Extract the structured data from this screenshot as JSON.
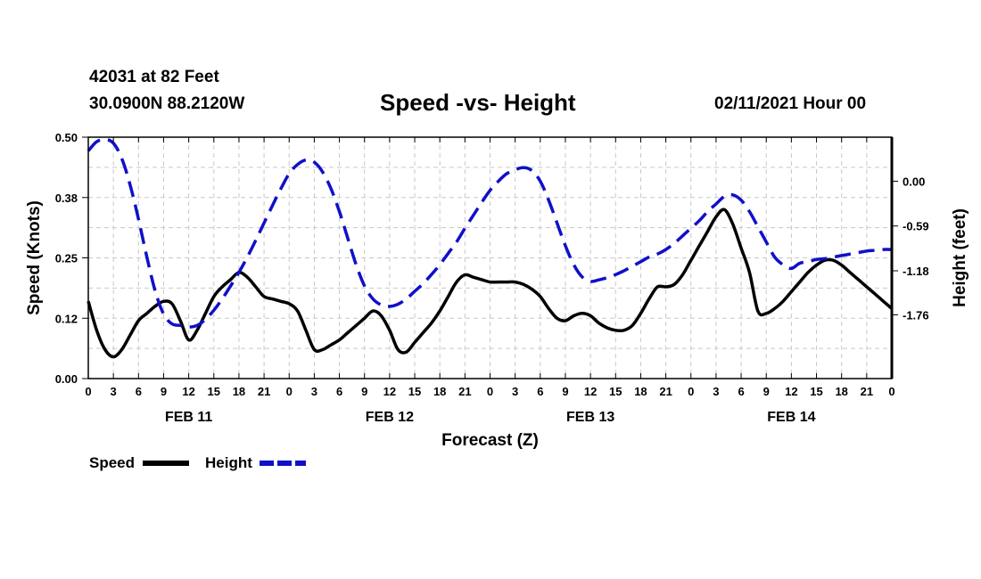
{
  "header": {
    "station": "42031 at 82 Feet",
    "coords": "30.0900N 88.2120W",
    "title": "Speed -vs- Height",
    "date": "02/11/2021 Hour 00"
  },
  "chart_data": {
    "type": "line",
    "title": "Speed -vs- Height",
    "xlabel": "Forecast (Z)",
    "ylabel_left": "Speed (Knots)",
    "ylabel_right": "Height (feet)",
    "x_range_hours": [
      0,
      96
    ],
    "x_tick_step_hours": 3,
    "x_tick_labels": [
      "0",
      "3",
      "6",
      "9",
      "12",
      "15",
      "18",
      "21",
      "0",
      "3",
      "6",
      "9",
      "12",
      "15",
      "18",
      "21",
      "0",
      "3",
      "6",
      "9",
      "12",
      "15",
      "18",
      "21",
      "0",
      "3",
      "6",
      "9",
      "12",
      "15",
      "18",
      "21",
      "0"
    ],
    "day_labels": [
      {
        "label": "FEB 11",
        "center_hour": 12
      },
      {
        "label": "FEB 12",
        "center_hour": 36
      },
      {
        "label": "FEB 13",
        "center_hour": 60
      },
      {
        "label": "FEB 14",
        "center_hour": 84
      }
    ],
    "left_axis": {
      "min": 0.0,
      "max": 0.5,
      "tick_values": [
        0.0,
        0.125,
        0.25,
        0.375,
        0.5
      ],
      "tick_labels": [
        "0.00",
        "0.12",
        "0.25",
        "0.38",
        "0.50"
      ]
    },
    "right_axis": {
      "min": -2.6,
      "max": 0.58,
      "tick_values": [
        0.0,
        -0.59,
        -1.18,
        -1.76
      ],
      "tick_labels": [
        "0.00",
        "-0.59",
        "-1.18",
        "-1.76"
      ]
    },
    "grid": true,
    "legend": [
      {
        "name": "Speed",
        "color": "#000000",
        "dash": "solid"
      },
      {
        "name": "Height",
        "color": "#1010c8",
        "dash": "dashed"
      }
    ],
    "series": [
      {
        "name": "Speed",
        "axis": "left",
        "color": "#000000",
        "x": [
          0,
          1,
          2,
          3,
          4,
          5,
          6,
          7,
          8,
          9,
          10,
          11,
          12,
          13,
          14,
          15,
          16,
          17,
          18,
          19,
          20,
          21,
          22,
          23,
          24,
          25,
          26,
          27,
          28,
          29,
          30,
          31,
          32,
          33,
          34,
          35,
          36,
          37,
          38,
          39,
          40,
          41,
          42,
          43,
          44,
          45,
          46,
          47,
          48,
          49,
          50,
          51,
          52,
          53,
          54,
          55,
          56,
          57,
          58,
          59,
          60,
          61,
          62,
          63,
          64,
          65,
          66,
          67,
          68,
          69,
          70,
          71,
          72,
          73,
          74,
          75,
          76,
          77,
          78,
          79,
          80,
          81,
          82,
          83,
          84,
          85,
          86,
          87,
          88,
          89,
          90,
          91,
          92,
          93,
          94,
          95,
          96
        ],
        "y": [
          0.16,
          0.1,
          0.06,
          0.045,
          0.06,
          0.09,
          0.12,
          0.135,
          0.15,
          0.16,
          0.155,
          0.12,
          0.08,
          0.1,
          0.135,
          0.17,
          0.19,
          0.205,
          0.22,
          0.21,
          0.19,
          0.17,
          0.165,
          0.16,
          0.155,
          0.14,
          0.1,
          0.06,
          0.06,
          0.07,
          0.08,
          0.095,
          0.11,
          0.125,
          0.14,
          0.13,
          0.1,
          0.06,
          0.055,
          0.075,
          0.095,
          0.115,
          0.14,
          0.17,
          0.2,
          0.215,
          0.21,
          0.205,
          0.2,
          0.2,
          0.2,
          0.2,
          0.195,
          0.185,
          0.17,
          0.145,
          0.125,
          0.12,
          0.13,
          0.135,
          0.13,
          0.115,
          0.105,
          0.1,
          0.1,
          0.11,
          0.135,
          0.165,
          0.19,
          0.19,
          0.195,
          0.215,
          0.245,
          0.275,
          0.305,
          0.335,
          0.35,
          0.32,
          0.27,
          0.22,
          0.14,
          0.135,
          0.145,
          0.16,
          0.18,
          0.2,
          0.22,
          0.235,
          0.245,
          0.245,
          0.235,
          0.22,
          0.205,
          0.19,
          0.175,
          0.16,
          0.145
        ]
      },
      {
        "name": "Height",
        "axis": "right",
        "color": "#1010c8",
        "x": [
          0,
          1,
          2,
          3,
          4,
          5,
          6,
          7,
          8,
          9,
          10,
          11,
          12,
          13,
          14,
          15,
          16,
          17,
          18,
          19,
          20,
          21,
          22,
          23,
          24,
          25,
          26,
          27,
          28,
          29,
          30,
          31,
          32,
          33,
          34,
          35,
          36,
          37,
          38,
          39,
          40,
          41,
          42,
          43,
          44,
          45,
          46,
          47,
          48,
          49,
          50,
          51,
          52,
          53,
          54,
          55,
          56,
          57,
          58,
          59,
          60,
          61,
          62,
          63,
          64,
          65,
          66,
          67,
          68,
          69,
          70,
          71,
          72,
          73,
          74,
          75,
          76,
          77,
          78,
          79,
          80,
          81,
          82,
          83,
          84,
          85,
          86,
          87,
          88,
          89,
          90,
          91,
          92,
          93,
          94,
          95,
          96
        ],
        "y": [
          0.4,
          0.52,
          0.55,
          0.5,
          0.3,
          -0.05,
          -0.5,
          -1.0,
          -1.45,
          -1.75,
          -1.88,
          -1.9,
          -1.92,
          -1.9,
          -1.82,
          -1.7,
          -1.55,
          -1.38,
          -1.2,
          -1.0,
          -0.78,
          -0.55,
          -0.32,
          -0.1,
          0.1,
          0.22,
          0.28,
          0.25,
          0.12,
          -0.1,
          -0.4,
          -0.75,
          -1.1,
          -1.38,
          -1.55,
          -1.63,
          -1.65,
          -1.62,
          -1.55,
          -1.45,
          -1.35,
          -1.23,
          -1.1,
          -0.95,
          -0.8,
          -0.62,
          -0.45,
          -0.28,
          -0.12,
          0.0,
          0.1,
          0.15,
          0.18,
          0.14,
          0.0,
          -0.25,
          -0.55,
          -0.85,
          -1.1,
          -1.26,
          -1.32,
          -1.3,
          -1.27,
          -1.23,
          -1.18,
          -1.12,
          -1.06,
          -1.0,
          -0.96,
          -0.9,
          -0.82,
          -0.72,
          -0.62,
          -0.52,
          -0.4,
          -0.3,
          -0.2,
          -0.18,
          -0.25,
          -0.4,
          -0.6,
          -0.8,
          -1.0,
          -1.1,
          -1.15,
          -1.08,
          -1.06,
          -1.03,
          -1.02,
          -1.0,
          -0.98,
          -0.96,
          -0.94,
          -0.92,
          -0.91,
          -0.9,
          -0.9
        ]
      }
    ]
  }
}
